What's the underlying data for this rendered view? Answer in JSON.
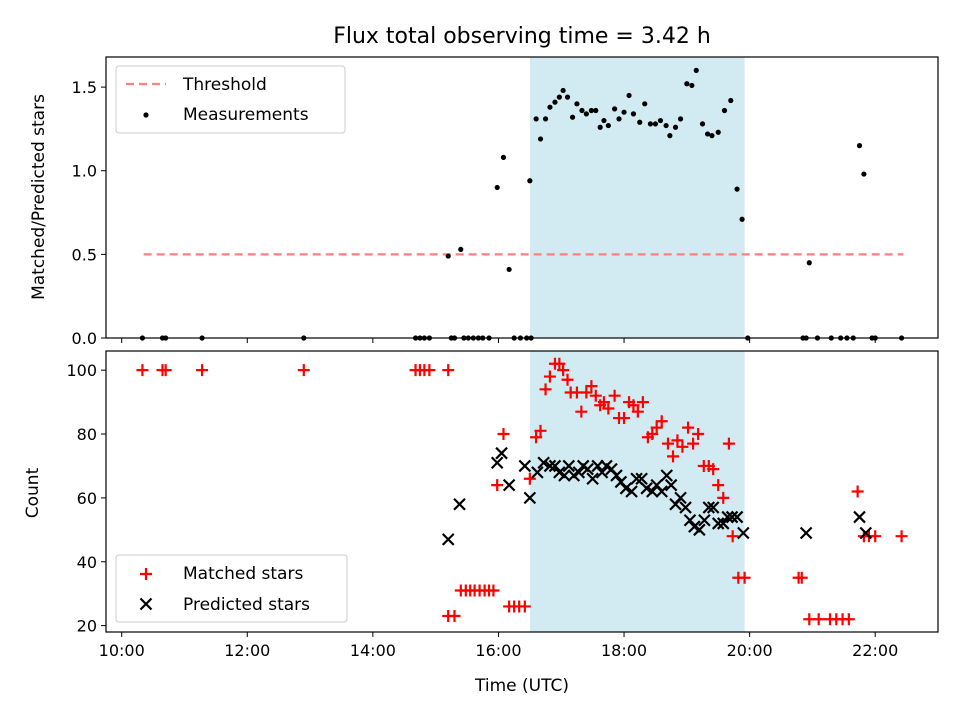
{
  "chart_data": {
    "type": "scatter",
    "title": "Flux total observing time = 3.42 h",
    "xlabel": "Time (UTC)",
    "x_ticks": [
      "10:00",
      "12:00",
      "14:00",
      "16:00",
      "18:00",
      "20:00",
      "22:00"
    ],
    "xlim_hours": [
      9.75,
      23.0
    ],
    "shaded_span_hours": [
      16.5,
      19.92
    ],
    "shaded_color": "#add8e6",
    "top": {
      "ylabel": "Matched/Predicted stars",
      "ylim": [
        0,
        1.68
      ],
      "y_ticks": [
        "0.0",
        "0.5",
        "1.0",
        "1.5"
      ],
      "legend_position": "upper-left",
      "threshold": {
        "name": "Threshold",
        "value": 0.5,
        "x_range": [
          10.35,
          22.45
        ],
        "color": "#ff7f7f"
      },
      "measurements": {
        "name": "Measurements",
        "color": "#000000",
        "points": [
          [
            10.33,
            0
          ],
          [
            10.65,
            0
          ],
          [
            10.7,
            0
          ],
          [
            11.28,
            0
          ],
          [
            12.9,
            0
          ],
          [
            14.68,
            0
          ],
          [
            14.75,
            0
          ],
          [
            14.82,
            0
          ],
          [
            14.9,
            0
          ],
          [
            15.2,
            0.49
          ],
          [
            15.25,
            0
          ],
          [
            15.3,
            0
          ],
          [
            15.4,
            0.53
          ],
          [
            15.45,
            0
          ],
          [
            15.52,
            0
          ],
          [
            15.6,
            0
          ],
          [
            15.68,
            0
          ],
          [
            15.75,
            0
          ],
          [
            15.85,
            0
          ],
          [
            15.98,
            0.9
          ],
          [
            16.08,
            1.08
          ],
          [
            16.17,
            0.41
          ],
          [
            16.25,
            0
          ],
          [
            16.35,
            0
          ],
          [
            16.45,
            0
          ],
          [
            16.52,
            0
          ],
          [
            16.5,
            0.94
          ],
          [
            16.6,
            1.31
          ],
          [
            16.67,
            1.19
          ],
          [
            16.75,
            1.31
          ],
          [
            16.82,
            1.38
          ],
          [
            16.9,
            1.41
          ],
          [
            16.97,
            1.44
          ],
          [
            17.03,
            1.48
          ],
          [
            17.1,
            1.44
          ],
          [
            17.18,
            1.32
          ],
          [
            17.25,
            1.4
          ],
          [
            17.33,
            1.36
          ],
          [
            17.4,
            1.34
          ],
          [
            17.48,
            1.36
          ],
          [
            17.55,
            1.36
          ],
          [
            17.62,
            1.26
          ],
          [
            17.68,
            1.3
          ],
          [
            17.75,
            1.27
          ],
          [
            17.85,
            1.37
          ],
          [
            17.92,
            1.31
          ],
          [
            18.0,
            1.35
          ],
          [
            18.08,
            1.45
          ],
          [
            18.15,
            1.34
          ],
          [
            18.25,
            1.29
          ],
          [
            18.33,
            1.4
          ],
          [
            18.42,
            1.28
          ],
          [
            18.5,
            1.28
          ],
          [
            18.58,
            1.3
          ],
          [
            18.67,
            1.27
          ],
          [
            18.73,
            1.21
          ],
          [
            18.82,
            1.26
          ],
          [
            18.9,
            1.31
          ],
          [
            19.0,
            1.52
          ],
          [
            19.08,
            1.51
          ],
          [
            19.15,
            1.6
          ],
          [
            19.25,
            1.28
          ],
          [
            19.33,
            1.22
          ],
          [
            19.4,
            1.21
          ],
          [
            19.5,
            1.23
          ],
          [
            19.6,
            1.36
          ],
          [
            19.7,
            1.42
          ],
          [
            19.8,
            0.89
          ],
          [
            19.88,
            0.71
          ],
          [
            19.97,
            0
          ],
          [
            20.85,
            0
          ],
          [
            20.9,
            0
          ],
          [
            20.95,
            0.45
          ],
          [
            21.08,
            0
          ],
          [
            21.3,
            0
          ],
          [
            21.45,
            0
          ],
          [
            21.55,
            0
          ],
          [
            21.65,
            0
          ],
          [
            21.75,
            1.15
          ],
          [
            21.82,
            0.98
          ],
          [
            21.95,
            0
          ],
          [
            22.0,
            0
          ],
          [
            22.42,
            0
          ]
        ]
      }
    },
    "bottom": {
      "ylabel": "Count",
      "ylim": [
        18,
        106
      ],
      "y_ticks": [
        "20",
        "40",
        "60",
        "80",
        "100"
      ],
      "legend_position": "lower-left",
      "series": [
        {
          "name": "Matched stars",
          "marker": "plus",
          "color": "#ff0000",
          "points": [
            [
              10.33,
              100
            ],
            [
              10.65,
              100
            ],
            [
              10.7,
              100
            ],
            [
              11.28,
              100
            ],
            [
              12.9,
              100
            ],
            [
              14.68,
              100
            ],
            [
              14.75,
              100
            ],
            [
              14.82,
              100
            ],
            [
              14.9,
              100
            ],
            [
              15.2,
              100
            ],
            [
              15.2,
              23
            ],
            [
              15.3,
              23
            ],
            [
              15.4,
              31
            ],
            [
              15.48,
              31
            ],
            [
              15.55,
              31
            ],
            [
              15.62,
              31
            ],
            [
              15.7,
              31
            ],
            [
              15.78,
              31
            ],
            [
              15.85,
              31
            ],
            [
              15.92,
              31
            ],
            [
              15.98,
              64
            ],
            [
              16.08,
              80
            ],
            [
              16.17,
              26
            ],
            [
              16.25,
              26
            ],
            [
              16.33,
              26
            ],
            [
              16.42,
              26
            ],
            [
              16.5,
              66
            ],
            [
              16.6,
              79
            ],
            [
              16.67,
              81
            ],
            [
              16.75,
              94
            ],
            [
              16.82,
              98
            ],
            [
              16.9,
              102
            ],
            [
              16.97,
              102
            ],
            [
              17.03,
              100
            ],
            [
              17.1,
              97
            ],
            [
              17.15,
              93
            ],
            [
              17.25,
              93
            ],
            [
              17.32,
              87
            ],
            [
              17.4,
              93
            ],
            [
              17.48,
              95
            ],
            [
              17.55,
              92
            ],
            [
              17.62,
              89
            ],
            [
              17.68,
              90
            ],
            [
              17.75,
              88
            ],
            [
              17.85,
              92
            ],
            [
              17.92,
              85
            ],
            [
              18.0,
              85
            ],
            [
              18.08,
              90
            ],
            [
              18.15,
              89
            ],
            [
              18.22,
              87
            ],
            [
              18.3,
              90
            ],
            [
              18.38,
              79
            ],
            [
              18.45,
              80
            ],
            [
              18.52,
              82
            ],
            [
              18.6,
              84
            ],
            [
              18.7,
              77
            ],
            [
              18.78,
              73
            ],
            [
              18.85,
              78
            ],
            [
              18.93,
              76
            ],
            [
              19.02,
              82
            ],
            [
              19.1,
              77
            ],
            [
              19.18,
              80
            ],
            [
              19.27,
              70
            ],
            [
              19.35,
              70
            ],
            [
              19.42,
              69
            ],
            [
              19.5,
              64
            ],
            [
              19.58,
              60
            ],
            [
              19.67,
              77
            ],
            [
              19.73,
              48
            ],
            [
              19.82,
              35
            ],
            [
              19.92,
              35
            ],
            [
              20.78,
              35
            ],
            [
              20.83,
              35
            ],
            [
              20.95,
              22
            ],
            [
              21.1,
              22
            ],
            [
              21.28,
              22
            ],
            [
              21.38,
              22
            ],
            [
              21.48,
              22
            ],
            [
              21.58,
              22
            ],
            [
              21.72,
              62
            ],
            [
              21.82,
              48
            ],
            [
              21.9,
              48
            ],
            [
              22.0,
              48
            ],
            [
              22.42,
              48
            ]
          ]
        },
        {
          "name": "Predicted stars",
          "marker": "x",
          "color": "#000000",
          "points": [
            [
              15.2,
              47
            ],
            [
              15.38,
              58
            ],
            [
              15.98,
              71
            ],
            [
              16.05,
              74
            ],
            [
              16.17,
              64
            ],
            [
              16.42,
              70
            ],
            [
              16.5,
              60
            ],
            [
              16.62,
              68
            ],
            [
              16.72,
              71
            ],
            [
              16.82,
              70
            ],
            [
              16.9,
              70
            ],
            [
              16.97,
              68
            ],
            [
              17.05,
              67
            ],
            [
              17.12,
              70
            ],
            [
              17.2,
              67
            ],
            [
              17.28,
              68
            ],
            [
              17.35,
              70
            ],
            [
              17.42,
              69
            ],
            [
              17.5,
              66
            ],
            [
              17.58,
              70
            ],
            [
              17.65,
              68
            ],
            [
              17.72,
              70
            ],
            [
              17.8,
              69
            ],
            [
              17.88,
              67
            ],
            [
              17.95,
              65
            ],
            [
              18.03,
              63
            ],
            [
              18.12,
              62
            ],
            [
              18.2,
              66
            ],
            [
              18.28,
              66
            ],
            [
              18.36,
              63
            ],
            [
              18.45,
              62
            ],
            [
              18.52,
              64
            ],
            [
              18.6,
              62
            ],
            [
              18.68,
              67
            ],
            [
              18.75,
              64
            ],
            [
              18.82,
              58
            ],
            [
              18.9,
              60
            ],
            [
              18.98,
              57
            ],
            [
              19.05,
              53
            ],
            [
              19.12,
              51
            ],
            [
              19.2,
              50
            ],
            [
              19.28,
              53
            ],
            [
              19.35,
              57
            ],
            [
              19.42,
              57
            ],
            [
              19.5,
              52
            ],
            [
              19.58,
              52
            ],
            [
              19.65,
              54
            ],
            [
              19.72,
              54
            ],
            [
              19.8,
              54
            ],
            [
              19.9,
              49
            ],
            [
              20.9,
              49
            ],
            [
              21.75,
              54
            ],
            [
              21.85,
              49
            ]
          ]
        }
      ]
    }
  }
}
